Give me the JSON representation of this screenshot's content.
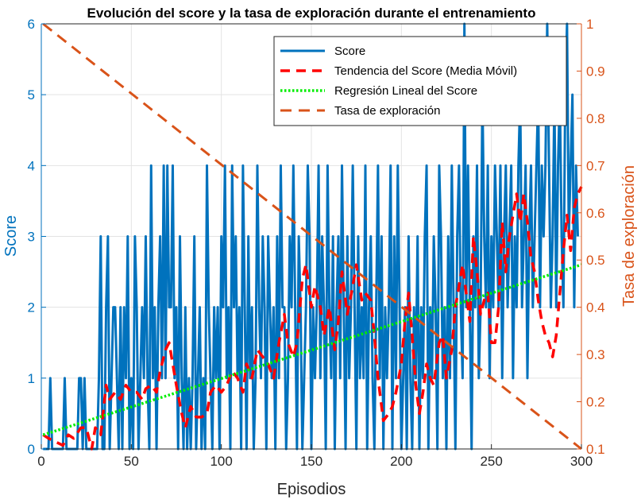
{
  "chart_data": {
    "type": "line",
    "title": "Evolución del score y la tasa de exploración durante el entrenamiento",
    "xlabel": "Episodios",
    "ylabel_left": "Score",
    "ylabel_right": "Tasa de exploración",
    "xlim": [
      0,
      300
    ],
    "ylim_left": [
      0,
      6
    ],
    "ylim_right": [
      0.1,
      1
    ],
    "x_ticks": [
      "0",
      "50",
      "100",
      "150",
      "200",
      "250",
      "300"
    ],
    "y_left_ticks": [
      "0",
      "1",
      "2",
      "3",
      "4",
      "5",
      "6"
    ],
    "y_right_ticks": [
      "0.1",
      "0.2",
      "0.3",
      "0.4",
      "0.5",
      "0.6",
      "0.7",
      "0.8",
      "0.9",
      "1"
    ],
    "grid": true,
    "legend_position": "top-right",
    "colors": {
      "score": "#0072BD",
      "trend": "#FF0000",
      "regression": "#00EE00",
      "exploration": "#D95319",
      "left_axis": "#0072BD",
      "right_axis": "#D95319"
    },
    "series": [
      {
        "name": "Score",
        "axis": "left",
        "style": "solid",
        "x_start": 1,
        "values": [
          0,
          0,
          0,
          0,
          1,
          0,
          0,
          0,
          0,
          0,
          0,
          0,
          1,
          0,
          0,
          0,
          0,
          0,
          0,
          0,
          1,
          1,
          0,
          1,
          0,
          0,
          0,
          0,
          0,
          0,
          0,
          1,
          3,
          0,
          0,
          2,
          3,
          0,
          1,
          2,
          2,
          1,
          0,
          2,
          0,
          2,
          1,
          3,
          0,
          1,
          0,
          3,
          2,
          0,
          1,
          2,
          1,
          3,
          1,
          0,
          4,
          1,
          2,
          0,
          2,
          3,
          1,
          4,
          1,
          4,
          2,
          2,
          4,
          1,
          2,
          0,
          3,
          1,
          0,
          2,
          0,
          1,
          0,
          1,
          3,
          0,
          1,
          2,
          0,
          1,
          0,
          4,
          2,
          1,
          0,
          2,
          1,
          2,
          0,
          3,
          2,
          4,
          1,
          2,
          0,
          4,
          2,
          3,
          1,
          2,
          0,
          4,
          2,
          0,
          3,
          1,
          2,
          0,
          1,
          4,
          2,
          1,
          3,
          2,
          0,
          3,
          2,
          1,
          2,
          0,
          3,
          1,
          4,
          2,
          2,
          0,
          1,
          3,
          2,
          4,
          2,
          0,
          3,
          2,
          0,
          1,
          2,
          4,
          3,
          0,
          2,
          1,
          2,
          4,
          1,
          3,
          2,
          0,
          4,
          2,
          1,
          3,
          0,
          2,
          3,
          1,
          4,
          2,
          0,
          3,
          1,
          2,
          4,
          2,
          0,
          3,
          1,
          2,
          1,
          4,
          0,
          2,
          3,
          1,
          0,
          2,
          4,
          1,
          3,
          0,
          2,
          1,
          2,
          4,
          0,
          3,
          1,
          4,
          2,
          0,
          1,
          2,
          0,
          3,
          1,
          0,
          2,
          1,
          3,
          0,
          2,
          1,
          3,
          4,
          0,
          2,
          1,
          3,
          2,
          0,
          4,
          3,
          1,
          2,
          0,
          3,
          1,
          4,
          2,
          0,
          3,
          4,
          2,
          1,
          6,
          2,
          4,
          2,
          0,
          3,
          2,
          4,
          1,
          2,
          5,
          3,
          2,
          4,
          1,
          3,
          2,
          4,
          3,
          2,
          4,
          1,
          3,
          4,
          2,
          3,
          4,
          1,
          3,
          2,
          4,
          5,
          2,
          3,
          4,
          1,
          3,
          4,
          2,
          3,
          4,
          5,
          2,
          4,
          3,
          4,
          6,
          4,
          2,
          3,
          5,
          2,
          4,
          5,
          3,
          2,
          5,
          6,
          3,
          4,
          5,
          2,
          4,
          3
        ]
      },
      {
        "name": "Tendencia del Score (Media Móvil)",
        "axis": "left",
        "style": "dashed",
        "points": [
          [
            1,
            0.2
          ],
          [
            4,
            0.15
          ],
          [
            8,
            0.1
          ],
          [
            12,
            0.05
          ],
          [
            15,
            0.2
          ],
          [
            18,
            0.15
          ],
          [
            22,
            0.3
          ],
          [
            25,
            0.3
          ],
          [
            28,
            0
          ],
          [
            30,
            0.3
          ],
          [
            33,
            0.2
          ],
          [
            36,
            0.9
          ],
          [
            38,
            0.7
          ],
          [
            41,
            0.8
          ],
          [
            44,
            0.7
          ],
          [
            47,
            0.9
          ],
          [
            50,
            0.8
          ],
          [
            53,
            0.8
          ],
          [
            56,
            0.7
          ],
          [
            58,
            0.85
          ],
          [
            61,
            0.9
          ],
          [
            64,
            0.8
          ],
          [
            66,
            1.1
          ],
          [
            69,
            1.4
          ],
          [
            71,
            1.5
          ],
          [
            73,
            1.2
          ],
          [
            75,
            0.9
          ],
          [
            78,
            0.5
          ],
          [
            80,
            0.3
          ],
          [
            83,
            0.6
          ],
          [
            86,
            0.45
          ],
          [
            89,
            0.45
          ],
          [
            92,
            0.5
          ],
          [
            94,
            0.8
          ],
          [
            97,
            0.9
          ],
          [
            100,
            0.8
          ],
          [
            103,
            0.9
          ],
          [
            106,
            1.1
          ],
          [
            109,
            1.0
          ],
          [
            112,
            0.8
          ],
          [
            114,
            1.2
          ],
          [
            117,
            1.0
          ],
          [
            120,
            1.4
          ],
          [
            123,
            1.3
          ],
          [
            126,
            1.2
          ],
          [
            129,
            1.0
          ],
          [
            132,
            1.5
          ],
          [
            135,
            1.9
          ],
          [
            137,
            1.5
          ],
          [
            140,
            1.3
          ],
          [
            142,
            1.5
          ],
          [
            145,
            2.4
          ],
          [
            147,
            2.6
          ],
          [
            150,
            2.0
          ],
          [
            152,
            2.3
          ],
          [
            155,
            2.0
          ],
          [
            157,
            1.6
          ],
          [
            160,
            2.0
          ],
          [
            163,
            1.4
          ],
          [
            165,
            1.8
          ],
          [
            167,
            2.5
          ],
          [
            170,
            1.9
          ],
          [
            173,
            2.3
          ],
          [
            175,
            2.6
          ],
          [
            178,
            2.1
          ],
          [
            180,
            2.2
          ],
          [
            183,
            2.1
          ],
          [
            185,
            1.6
          ],
          [
            187,
            1.0
          ],
          [
            190,
            0.4
          ],
          [
            193,
            0.5
          ],
          [
            195,
            0.6
          ],
          [
            197,
            0.8
          ],
          [
            200,
            1.2
          ],
          [
            202,
            1.8
          ],
          [
            204,
            2.2
          ],
          [
            206,
            1.6
          ],
          [
            208,
            0.9
          ],
          [
            210,
            0.5
          ],
          [
            212,
            0.8
          ],
          [
            214,
            1.2
          ],
          [
            216,
            1.0
          ],
          [
            218,
            0.9
          ],
          [
            221,
            1.5
          ],
          [
            223,
            1.6
          ],
          [
            225,
            1.0
          ],
          [
            228,
            1.4
          ],
          [
            230,
            2.0
          ],
          [
            232,
            2.3
          ],
          [
            234,
            2.6
          ],
          [
            236,
            2.2
          ],
          [
            238,
            1.8
          ],
          [
            240,
            3.0
          ],
          [
            242,
            2.5
          ],
          [
            244,
            1.9
          ],
          [
            246,
            2.1
          ],
          [
            248,
            2.2
          ],
          [
            250,
            1.5
          ],
          [
            252,
            1.5
          ],
          [
            254,
            2.0
          ],
          [
            256,
            3.2
          ],
          [
            258,
            2.5
          ],
          [
            260,
            3.0
          ],
          [
            262,
            3.3
          ],
          [
            264,
            3.6
          ],
          [
            266,
            3.2
          ],
          [
            268,
            3.6
          ],
          [
            270,
            3.2
          ],
          [
            272,
            2.7
          ],
          [
            274,
            2.5
          ],
          [
            276,
            2.1
          ],
          [
            278,
            1.8
          ],
          [
            280,
            1.6
          ],
          [
            282,
            1.5
          ],
          [
            284,
            1.3
          ],
          [
            286,
            1.6
          ],
          [
            288,
            2.2
          ],
          [
            290,
            2.8
          ],
          [
            292,
            3.3
          ],
          [
            294,
            2.8
          ],
          [
            296,
            3.4
          ],
          [
            298,
            3.6
          ],
          [
            300,
            3.7
          ]
        ]
      },
      {
        "name": "Regresión Lineal del Score",
        "axis": "left",
        "style": "dotted",
        "points": [
          [
            1,
            0.2
          ],
          [
            300,
            2.6
          ]
        ]
      },
      {
        "name": "Tasa de exploración",
        "axis": "right",
        "style": "dashed",
        "points": [
          [
            1,
            1.0
          ],
          [
            300,
            0.1
          ]
        ]
      }
    ]
  }
}
